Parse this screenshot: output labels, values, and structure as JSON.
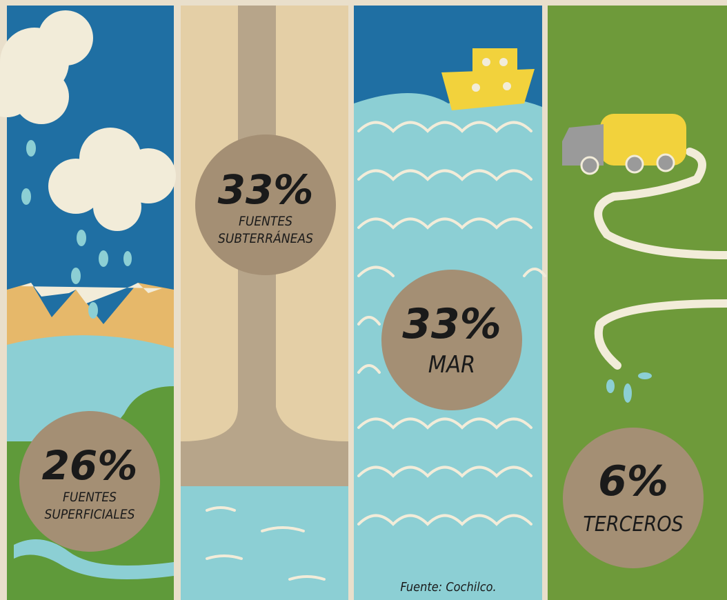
{
  "panels": [
    {
      "value": "26%",
      "lines": [
        "FUENTES",
        "SUPERFICIALES"
      ]
    },
    {
      "value": "33%",
      "lines": [
        "FUENTES",
        "SUBTERRÁNEAS"
      ]
    },
    {
      "value": "33%",
      "lines": [
        "MAR"
      ]
    },
    {
      "value": "6%",
      "lines": [
        "TERCEROS"
      ]
    }
  ],
  "source": "Fuente: Cochilco."
}
